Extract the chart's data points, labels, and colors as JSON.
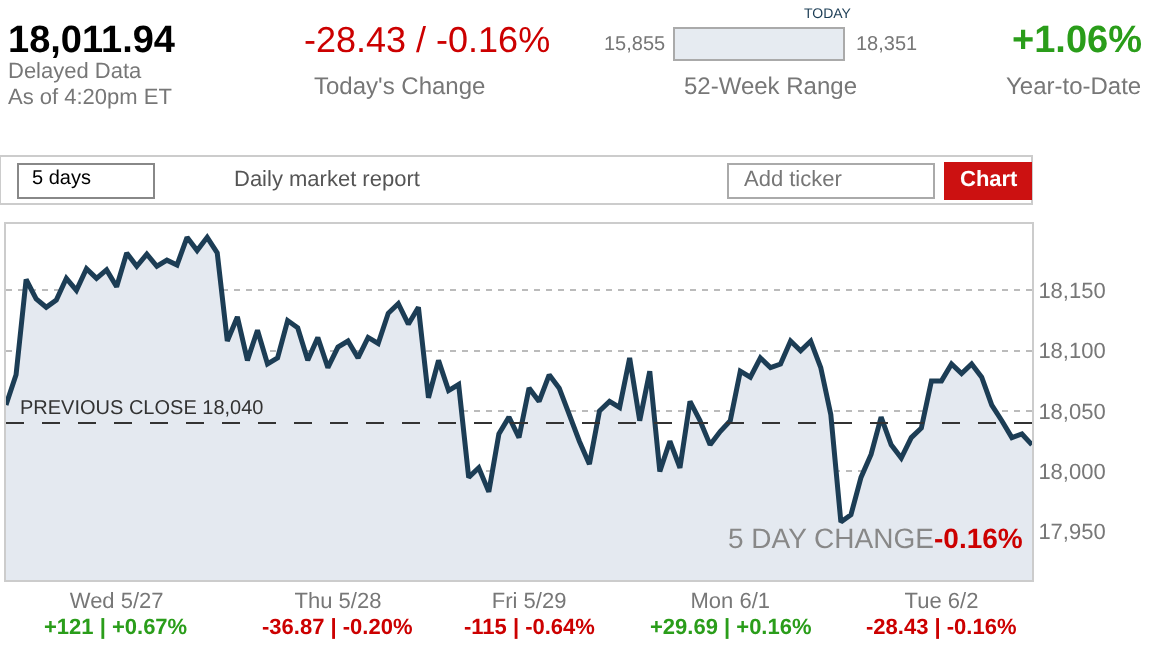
{
  "chart_data": {
    "type": "area",
    "annotations": [
      "18,011.94",
      "Delayed Data",
      "As of 4:20pm ET",
      "-28.43 / -0.16%",
      "Today's Change",
      "15,855",
      "18,351",
      "TODAY",
      "52-Week Range",
      "+1.06%",
      "Year-to-Date",
      "5 days",
      "Daily market report",
      "Add ticker",
      "Chart",
      "5 DAY CHANGE",
      "-0.16%",
      "+121 | +0.67%",
      "-36.87 | -0.20%",
      "-115 | -0.64%",
      "+29.69 | +0.16%",
      "-28.43 | -0.16%"
    ],
    "categories": [
      null,
      null,
      null,
      null,
      null,
      null,
      null,
      null,
      null,
      null,
      null,
      "Wed 5/27",
      null,
      null,
      null,
      null,
      null,
      null,
      null,
      null,
      null,
      null,
      null,
      null,
      null,
      null,
      null,
      null,
      null,
      null,
      null,
      null,
      null,
      "Thu 5/28",
      null,
      null,
      null,
      null,
      null,
      null,
      null,
      null,
      null,
      null,
      null,
      null,
      null,
      null,
      null,
      null,
      null,
      null,
      "Fri 5/29",
      null,
      null,
      null,
      null,
      null,
      null,
      null,
      null,
      null,
      null,
      null,
      null,
      null,
      null,
      null,
      null,
      null,
      null,
      null,
      "Mon 6/1",
      null,
      null,
      null,
      null,
      null,
      null,
      null,
      null,
      null,
      null,
      null,
      null,
      null,
      null,
      null,
      null,
      null,
      null,
      null,
      null,
      "Tue 6/2",
      null,
      null,
      null,
      null,
      null,
      null,
      null,
      null,
      null
    ],
    "series": [
      {
        "color": "#1c3d55",
        "values": [
          18055,
          18080,
          18159,
          18143,
          18136,
          18142,
          18160,
          18150,
          18168,
          18160,
          18167,
          18153,
          18181,
          18170,
          18180,
          18170,
          18175,
          18171,
          18194,
          18183,
          18194,
          18181,
          18108,
          18128,
          18092,
          18117,
          18089,
          18094,
          18125,
          18119,
          18092,
          18111,
          18086,
          18103,
          18108,
          18094,
          18111,
          18106,
          18131,
          18139,
          18122,
          18136,
          18061,
          18092,
          18067,
          18072,
          17995,
          18003,
          17983,
          18031,
          18045,
          18028,
          18069,
          18058,
          18080,
          18069,
          18047,
          18025,
          18006,
          18050,
          18058,
          18053,
          18094,
          18042,
          18083,
          18000,
          18025,
          18003,
          18058,
          18042,
          18022,
          18033,
          18042,
          18083,
          18078,
          18094,
          18086,
          18089,
          18108,
          18100,
          18108,
          18086,
          18047,
          17958,
          17964,
          17995,
          18014,
          18045,
          18022,
          18011,
          18028,
          18036,
          18075,
          18075,
          18089,
          18081,
          18089,
          18078,
          18055,
          18042,
          18028,
          18031,
          18022
        ]
      }
    ],
    "ylim": [
      17910,
      18205
    ],
    "yticks": [
      {
        "value": 17950,
        "label": "17,950"
      },
      {
        "value": 18000,
        "label": "18,000"
      },
      {
        "value": 18050,
        "label": "18,050"
      },
      {
        "value": 18100,
        "label": "18,100"
      },
      {
        "value": 18150,
        "label": "18,150"
      }
    ],
    "ref_lines": [
      {
        "axis": "y",
        "value": 18040,
        "label": "PREVIOUS CLOSE 18,040",
        "line_style": "dashed",
        "color": "#333333"
      }
    ],
    "grid": "y"
  }
}
